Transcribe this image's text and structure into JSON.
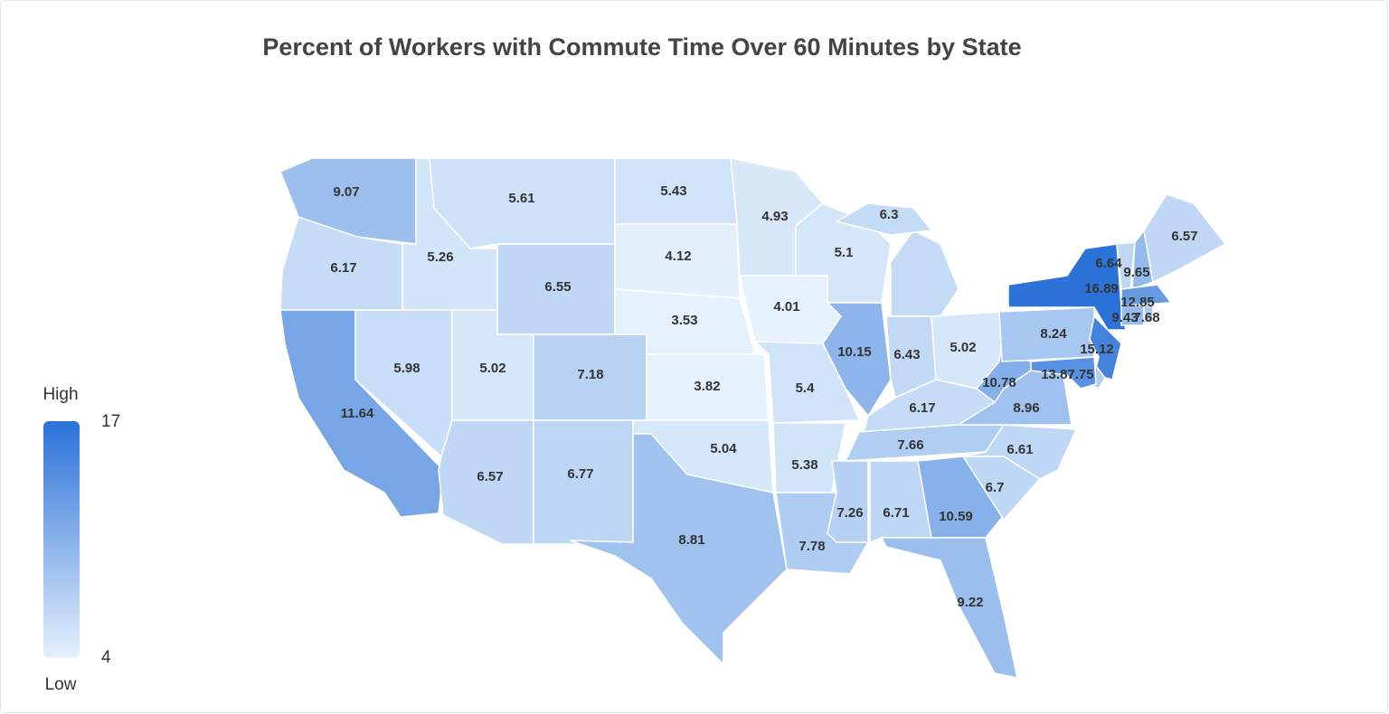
{
  "chart_data": {
    "type": "choropleth",
    "title": "Percent of Workers with Commute Time Over 60 Minutes by State",
    "values": [
      9.07,
      6.17,
      11.64,
      5.26,
      5.98,
      5.61,
      6.55,
      5.02,
      6.57,
      7.18,
      6.77,
      5.43,
      4.12,
      3.53,
      3.82,
      5.04,
      8.81,
      4.93,
      4.01,
      5.4,
      5.38,
      7.78,
      5.1,
      10.15,
      6.3,
      6.43,
      5.02,
      6.17,
      7.66,
      7.26,
      6.71,
      10.59,
      9.22,
      6.7,
      6.61,
      8.96,
      10.78,
      8.24,
      16.89,
      15.12,
      7.75,
      13.87,
      6.64,
      9.65,
      6.57,
      12.85,
      9.43,
      7.68
    ],
    "scale": {
      "min": 4,
      "max": 17,
      "colors": [
        "#e5f1fc",
        "#2a72d9"
      ]
    },
    "legend": {
      "high": "High",
      "low": "Low"
    }
  }
}
